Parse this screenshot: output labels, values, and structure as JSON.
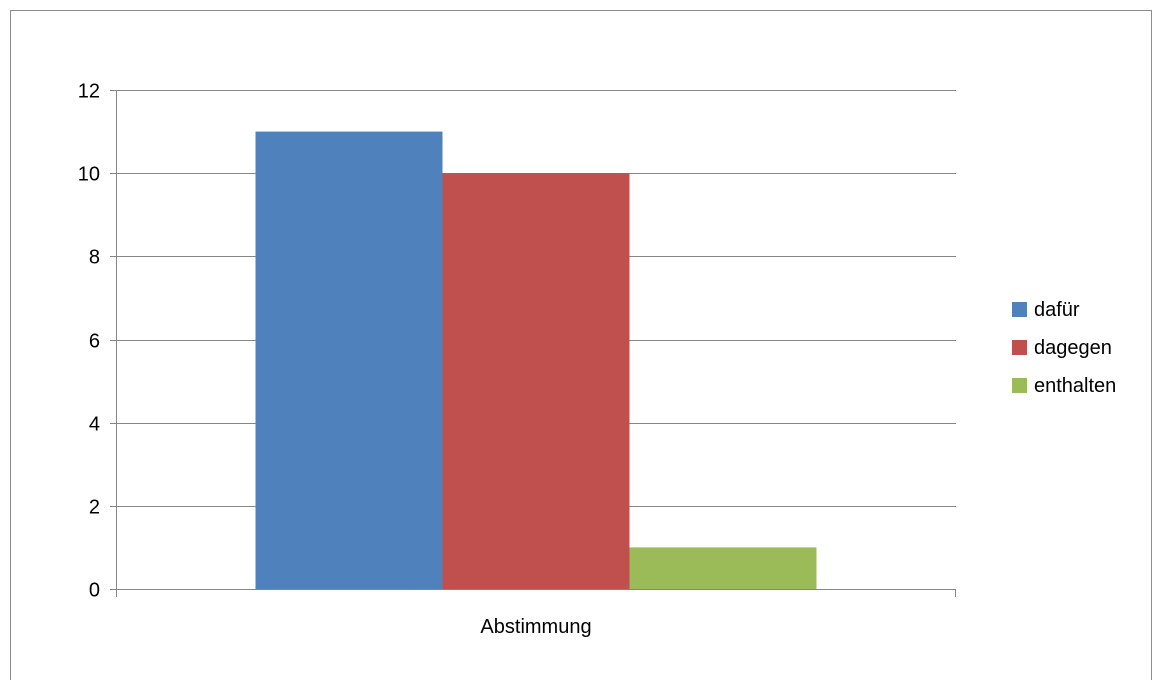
{
  "chart_data": {
    "type": "bar",
    "categories": [
      "Abstimmung"
    ],
    "series": [
      {
        "name": "dafür",
        "values": [
          11
        ],
        "color": "#4F81BD"
      },
      {
        "name": "dagegen",
        "values": [
          10
        ],
        "color": "#C0504D"
      },
      {
        "name": "enthalten",
        "values": [
          1
        ],
        "color": "#9BBB59"
      }
    ],
    "title": "",
    "xlabel": "",
    "ylabel": "",
    "ylim": [
      0,
      12
    ],
    "yticks": [
      0,
      2,
      4,
      6,
      8,
      10,
      12
    ],
    "ytick_labels": [
      "0",
      "2",
      "4",
      "6",
      "8",
      "10",
      "12"
    ],
    "grid": true,
    "legend_position": "right"
  }
}
